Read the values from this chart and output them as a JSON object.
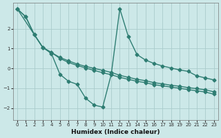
{
  "xlabel": "Humidex (Indice chaleur)",
  "background_color": "#cce8e8",
  "grid_color": "#aacccc",
  "line_color": "#2e7d72",
  "xlim": [
    -0.5,
    23.5
  ],
  "ylim": [
    -2.6,
    3.3
  ],
  "xticks": [
    0,
    1,
    2,
    3,
    4,
    5,
    6,
    7,
    8,
    9,
    10,
    11,
    12,
    13,
    14,
    15,
    16,
    17,
    18,
    19,
    20,
    21,
    22,
    23
  ],
  "yticks": [
    -2,
    -1,
    0,
    1,
    2
  ],
  "series1_x": [
    0,
    1,
    2,
    3,
    4,
    5,
    6,
    7,
    8,
    9,
    10,
    11,
    12,
    13,
    14,
    15,
    16,
    17,
    18,
    19,
    20,
    21,
    22,
    23
  ],
  "series1_y": [
    3.0,
    2.6,
    1.7,
    1.05,
    0.8,
    0.55,
    0.38,
    0.22,
    0.1,
    0.0,
    -0.1,
    -0.2,
    -0.35,
    -0.45,
    -0.55,
    -0.62,
    -0.72,
    -0.78,
    -0.85,
    -0.9,
    -0.97,
    -1.02,
    -1.08,
    -1.18
  ],
  "series2_x": [
    0,
    1,
    2,
    3,
    4,
    5,
    6,
    7,
    8,
    9,
    10,
    11,
    12,
    13,
    14,
    15,
    16,
    17,
    18,
    19,
    20,
    21,
    22,
    23
  ],
  "series2_y": [
    3.0,
    2.6,
    1.7,
    1.05,
    0.8,
    0.5,
    0.3,
    0.15,
    0.02,
    -0.1,
    -0.22,
    -0.32,
    -0.45,
    -0.55,
    -0.65,
    -0.72,
    -0.82,
    -0.88,
    -0.94,
    -1.0,
    -1.07,
    -1.13,
    -1.19,
    -1.3
  ],
  "series3_x": [
    0,
    2,
    3,
    4,
    5,
    6,
    7,
    8,
    9,
    10,
    11,
    12,
    13,
    14,
    15,
    16,
    17,
    18,
    19,
    20,
    21,
    22,
    23
  ],
  "series3_y": [
    3.0,
    1.7,
    1.05,
    0.75,
    -0.3,
    -0.65,
    -0.8,
    -1.5,
    -1.85,
    -1.95,
    -0.3,
    3.0,
    1.6,
    0.7,
    0.42,
    0.25,
    0.12,
    0.02,
    -0.08,
    -0.15,
    -0.38,
    -0.48,
    -0.58
  ],
  "marker": "D",
  "markersize": 2.5,
  "linewidth": 1.0
}
